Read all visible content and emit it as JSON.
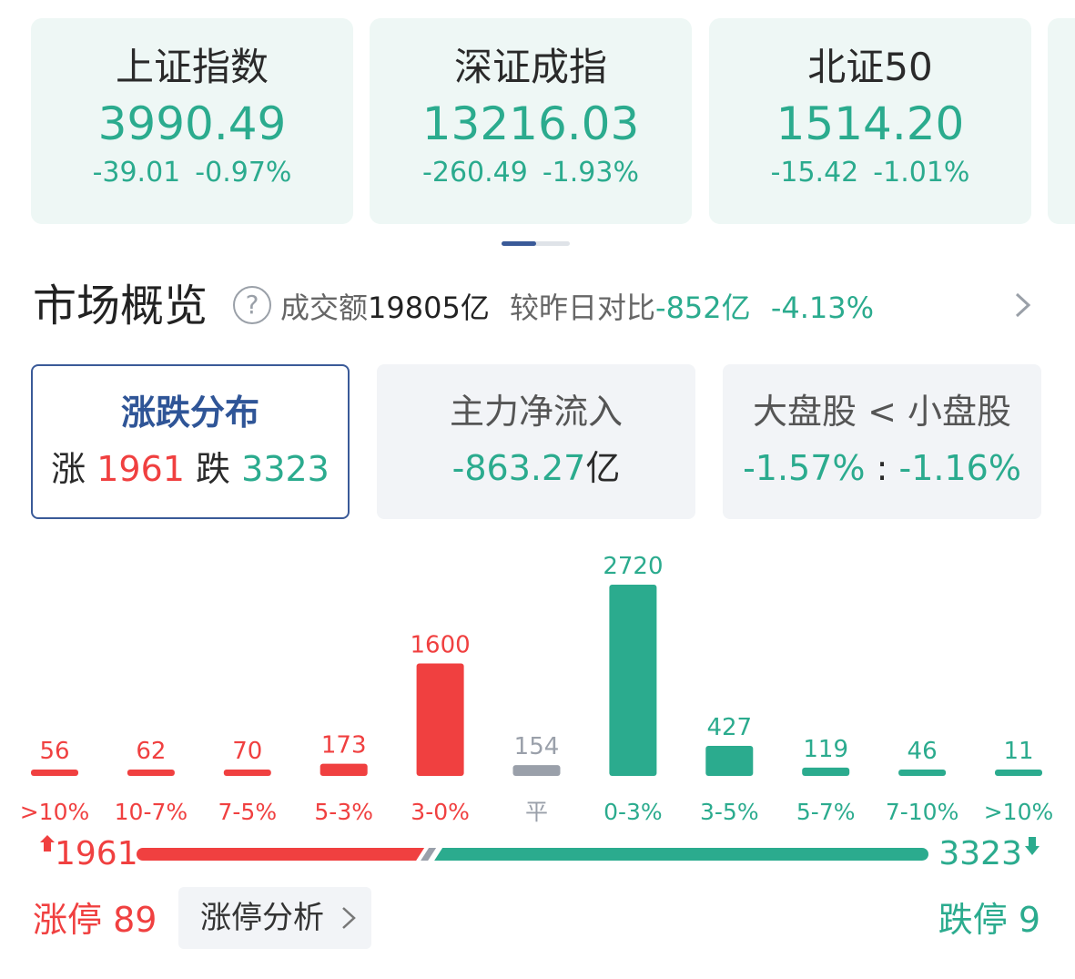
{
  "indices": [
    {
      "name": "上证指数",
      "value": "3990.49",
      "change": "-39.01",
      "pct": "-0.97%"
    },
    {
      "name": "深证成指",
      "value": "13216.03",
      "change": "-260.49",
      "pct": "-1.93%"
    },
    {
      "name": "北证50",
      "value": "1514.20",
      "change": "-15.42",
      "pct": "-1.01%"
    }
  ],
  "overview": {
    "title": "市场概览",
    "help": "?",
    "turnover_label": "成交额",
    "turnover_value": "19805亿",
    "compare_label": "较昨日对比",
    "compare_value": "-852亿",
    "compare_pct": "-4.13%"
  },
  "tabs": {
    "distribution": {
      "title": "涨跌分布",
      "up_label": "涨",
      "up_value": "1961",
      "down_label": "跌",
      "down_value": "3323"
    },
    "main_flow": {
      "title": "主力净流入",
      "value": "-863.27",
      "unit": "亿"
    },
    "cap_compare": {
      "title": "大盘股 < 小盘股",
      "large": "-1.57%",
      "sep": ":",
      "small": "-1.16%"
    }
  },
  "chart_data": {
    "type": "bar",
    "categories": [
      ">10%",
      "10-7%",
      "7-5%",
      "5-3%",
      "3-0%",
      "平",
      "0-3%",
      "3-5%",
      "5-7%",
      "7-10%",
      ">10%"
    ],
    "values": [
      56,
      62,
      70,
      173,
      1600,
      154,
      2720,
      427,
      119,
      46,
      11
    ],
    "groups": [
      "up",
      "up",
      "up",
      "up",
      "up",
      "flat",
      "down",
      "down",
      "down",
      "down",
      "down"
    ],
    "ylim": [
      0,
      2720
    ]
  },
  "ratio": {
    "up": "1961",
    "down": "3323",
    "up_fraction": 0.371,
    "down_fraction": 0.629
  },
  "limits": {
    "up_label": "涨停",
    "up_value": "89",
    "analysis_label": "涨停分析",
    "down_label": "跌停",
    "down_value": "9"
  },
  "colors": {
    "up": "#f04040",
    "down": "#2bab8e",
    "flat": "#9aa0aa",
    "accent": "#3a5a98"
  }
}
